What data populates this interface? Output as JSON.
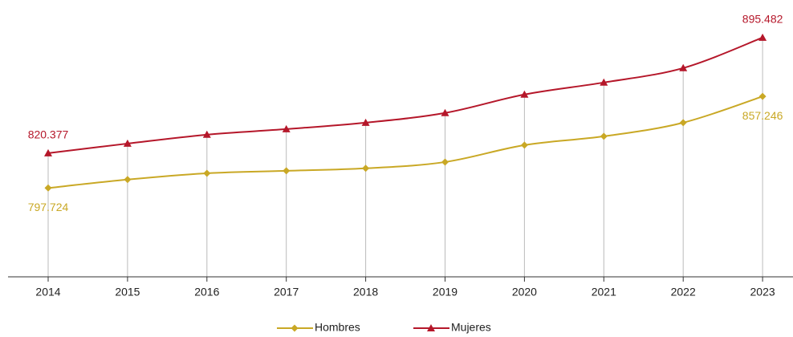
{
  "chart_data": {
    "type": "line",
    "categories": [
      "2014",
      "2015",
      "2016",
      "2017",
      "2018",
      "2019",
      "2020",
      "2021",
      "2022",
      "2023"
    ],
    "series": [
      {
        "name": "Hombres",
        "color": "#c9a825",
        "marker": "diamond",
        "values": [
          797724,
          803200,
          807300,
          808900,
          810500,
          814600,
          825600,
          831300,
          840200,
          857246
        ],
        "value_labels": [
          "797.724",
          null,
          null,
          null,
          null,
          null,
          null,
          null,
          null,
          "857.246"
        ]
      },
      {
        "name": "Mujeres",
        "color": "#b5172a",
        "marker": "triangle",
        "values": [
          820377,
          826600,
          832400,
          836000,
          840200,
          846500,
          858500,
          866300,
          875700,
          895482
        ],
        "value_labels": [
          "820.377",
          null,
          null,
          null,
          null,
          null,
          null,
          null,
          null,
          "895.482"
        ]
      }
    ],
    "ylim": [
      740000,
      910000
    ],
    "legend": "bottom",
    "drop_lines": true
  }
}
